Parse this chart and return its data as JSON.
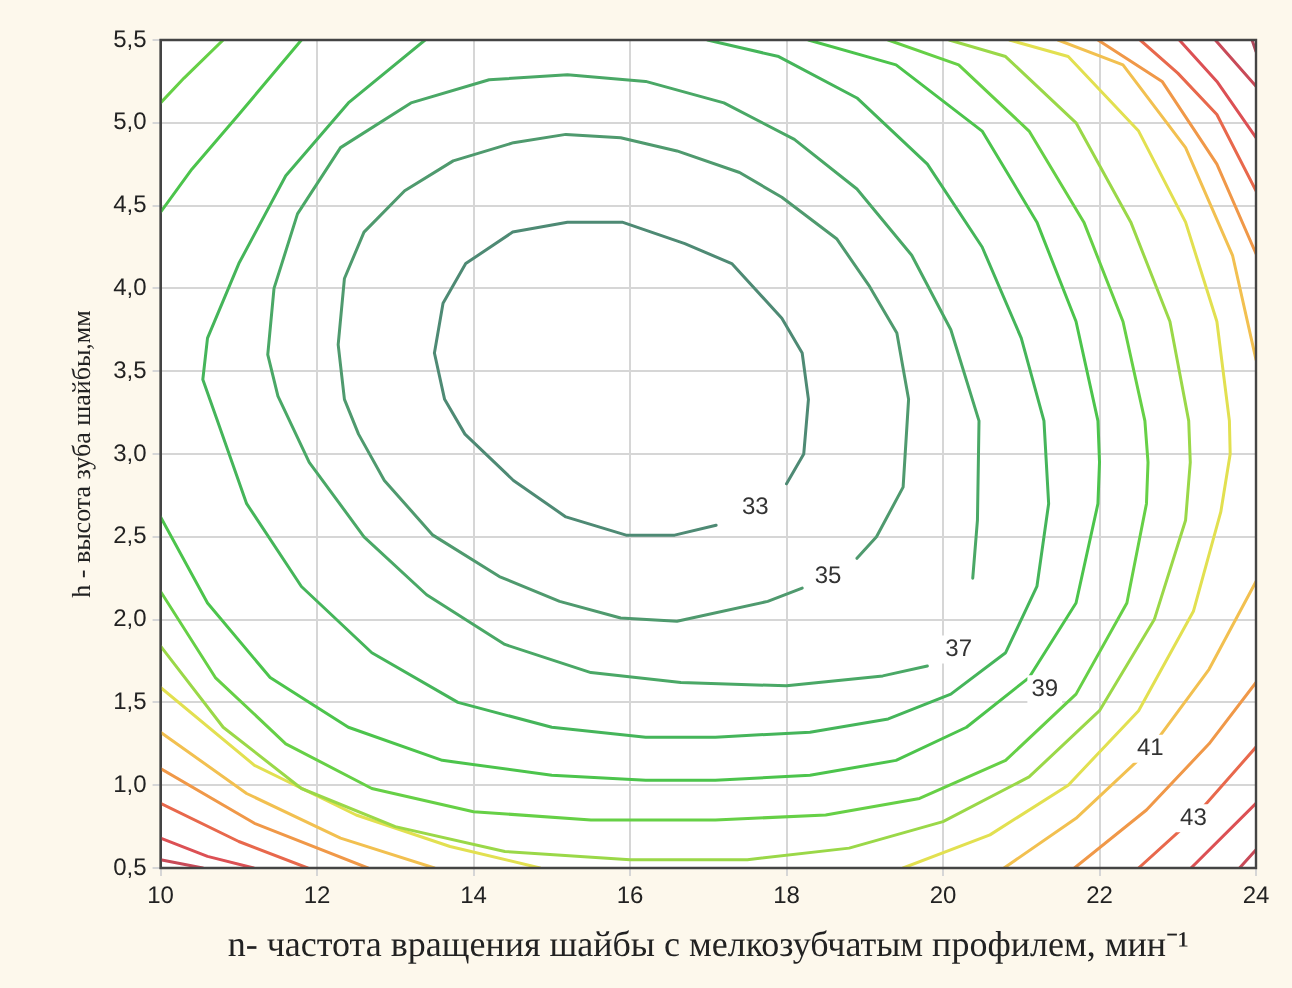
{
  "chart_data": {
    "type": "line",
    "xlabel": "n- частота вращения шайбы с мелкозубчатым профилем, мин⁻¹",
    "ylabel": "h - высота зуба шайбы,мм",
    "xlim": [
      10,
      24
    ],
    "ylim": [
      0.5,
      5.5
    ],
    "xticks": [
      10,
      12,
      14,
      16,
      18,
      20,
      22,
      24
    ],
    "yticks": [
      {
        "value": 0.5,
        "label": "0,5"
      },
      {
        "value": 1,
        "label": "1,0"
      },
      {
        "value": 1.5,
        "label": "1,5"
      },
      {
        "value": 2,
        "label": "2,0"
      },
      {
        "value": 2.5,
        "label": "2,5"
      },
      {
        "value": 3,
        "label": "3,0"
      },
      {
        "value": 3.5,
        "label": "3,5"
      },
      {
        "value": 4,
        "label": "4,0"
      },
      {
        "value": 4.5,
        "label": "4,5"
      },
      {
        "value": 5,
        "label": "5,0"
      },
      {
        "value": 5.5,
        "label": "5,5"
      }
    ],
    "grid": true,
    "marker": "none",
    "line_style": "solid",
    "series": [
      {
        "color": "#4e8a74",
        "x": [
          13.5,
          13.61,
          13.9,
          14.5,
          15.2,
          15.9,
          16.7,
          17.3,
          17.94,
          18.2,
          18.28,
          null,
          13.5,
          13.63,
          13.89,
          14.51,
          15.18,
          15.95,
          16.57,
          17.1,
          17.6,
          18.0,
          18.22,
          18.28
        ],
        "values": [
          3.61,
          3.91,
          4.15,
          4.34,
          4.4,
          4.4,
          4.27,
          4.15,
          3.82,
          3.61,
          3.33,
          null,
          3.61,
          3.33,
          3.12,
          2.84,
          2.62,
          2.51,
          2.51,
          2.57,
          null,
          2.82,
          3.0,
          3.33
        ]
      },
      {
        "color": "#4f9a6e",
        "x": [
          12.27,
          12.35,
          12.6,
          13.12,
          13.74,
          14.51,
          15.18,
          15.88,
          16.6,
          17.4,
          17.94,
          18.64,
          19.05,
          19.41,
          19.56,
          null,
          12.27,
          12.35,
          12.53,
          12.86,
          13.48,
          14.33,
          15.1,
          15.88,
          16.6,
          17.76,
          18.2,
          18.6,
          18.9,
          19.15,
          19.49,
          19.56
        ],
        "values": [
          3.66,
          4.06,
          4.34,
          4.59,
          4.77,
          4.88,
          4.93,
          4.91,
          4.83,
          4.7,
          4.55,
          4.3,
          4.02,
          3.73,
          3.33,
          null,
          3.66,
          3.33,
          3.12,
          2.84,
          2.51,
          2.26,
          2.11,
          2.01,
          1.99,
          2.11,
          2.19,
          null,
          2.37,
          2.5,
          2.8,
          3.33
        ]
      },
      {
        "color": "#4aa866",
        "x": [
          11.37,
          11.45,
          11.75,
          12.3,
          13.2,
          14.2,
          15.2,
          16.2,
          17.2,
          18.1,
          18.9,
          19.6,
          20.1,
          20.46,
          null,
          11.37,
          11.5,
          11.9,
          12.6,
          13.4,
          14.4,
          15.5,
          16.65,
          18.0,
          19.23,
          19.8,
          20.2,
          20.38,
          20.44,
          20.46
        ],
        "values": [
          3.6,
          4.0,
          4.45,
          4.85,
          5.12,
          5.26,
          5.29,
          5.25,
          5.12,
          4.9,
          4.6,
          4.2,
          3.75,
          3.2,
          null,
          3.6,
          3.35,
          2.95,
          2.5,
          2.15,
          1.85,
          1.68,
          1.62,
          1.6,
          1.66,
          1.72,
          null,
          2.25,
          2.6,
          3.2
        ]
      },
      {
        "color": "#45b55a",
        "x": [
          10.54,
          10.6,
          11.0,
          11.6,
          12.4,
          13.38,
          null,
          10.54,
          10.72,
          11.1,
          11.8,
          12.7,
          13.8,
          15.0,
          16.2,
          17.09,
          18.3,
          19.3,
          20.1,
          20.8,
          21.2,
          21.35,
          null,
          16.99,
          17.9,
          18.9,
          19.8,
          20.5,
          21.0,
          21.29,
          21.35
        ],
        "values": [
          3.45,
          3.7,
          4.15,
          4.68,
          5.12,
          5.5,
          null,
          3.45,
          3.21,
          2.7,
          2.2,
          1.8,
          1.5,
          1.35,
          1.29,
          1.29,
          1.32,
          1.4,
          1.55,
          1.8,
          2.2,
          2.7,
          null,
          5.5,
          5.4,
          5.15,
          4.75,
          4.25,
          3.7,
          3.2,
          2.7
        ]
      },
      {
        "color": "#4cc44c",
        "x": [
          10.0,
          10.4,
          11.0,
          11.8,
          null,
          10.0,
          10.6,
          11.4,
          12.4,
          13.6,
          15.0,
          16.2,
          17.09,
          18.3,
          19.4,
          20.3,
          21.1,
          21.7,
          21.98,
          22.0,
          null,
          18.28,
          19.4,
          20.5,
          21.2,
          21.7,
          21.98,
          22.0
        ],
        "values": [
          4.46,
          4.72,
          5.05,
          5.5,
          null,
          2.62,
          2.1,
          1.65,
          1.35,
          1.15,
          1.06,
          1.03,
          1.03,
          1.06,
          1.15,
          1.35,
          1.65,
          2.1,
          2.7,
          2.95,
          null,
          5.5,
          5.35,
          4.95,
          4.4,
          3.8,
          3.2,
          2.95
        ]
      },
      {
        "color": "#66d046",
        "x": [
          10.0,
          10.3,
          10.8,
          null,
          10.0,
          10.7,
          11.6,
          12.7,
          14.0,
          15.5,
          17.09,
          18.5,
          19.7,
          20.8,
          21.7,
          22.35,
          22.6,
          22.62,
          null,
          19.3,
          20.2,
          21.1,
          21.8,
          22.3,
          22.58,
          22.62
        ],
        "values": [
          5.12,
          5.27,
          5.5,
          null,
          2.17,
          1.65,
          1.25,
          0.98,
          0.84,
          0.79,
          0.79,
          0.82,
          0.92,
          1.15,
          1.55,
          2.1,
          2.7,
          2.95,
          null,
          5.5,
          5.35,
          4.95,
          4.4,
          3.8,
          3.2,
          2.95
        ]
      },
      {
        "color": "#9ad848",
        "x": [
          10.0,
          10.8,
          11.8,
          13.0,
          14.4,
          16.0,
          17.5,
          18.8,
          20.0,
          21.1,
          22.0,
          22.7,
          23.1,
          23.16,
          null,
          20.08,
          20.8,
          21.7,
          22.4,
          22.9,
          23.14,
          23.16
        ],
        "values": [
          1.84,
          1.35,
          0.98,
          0.75,
          0.6,
          0.55,
          0.55,
          0.62,
          0.78,
          1.05,
          1.45,
          2.0,
          2.6,
          2.95,
          null,
          5.5,
          5.4,
          5.0,
          4.4,
          3.8,
          3.2,
          2.95
        ]
      },
      {
        "color": "#e2e050",
        "x": [
          10.0,
          11.2,
          12.5,
          13.7,
          14.85,
          null,
          19.49,
          20.6,
          21.6,
          22.5,
          23.2,
          23.55,
          23.67,
          null,
          20.85,
          21.6,
          22.5,
          23.1,
          23.5,
          23.66,
          23.67
        ],
        "values": [
          1.59,
          1.12,
          0.82,
          0.63,
          0.5,
          null,
          0.5,
          0.7,
          1.0,
          1.45,
          2.05,
          2.65,
          3.0,
          null,
          5.5,
          5.4,
          4.95,
          4.4,
          3.8,
          3.2,
          3.0
        ]
      },
      {
        "color": "#f2c050",
        "x": [
          10.0,
          11.1,
          12.3,
          13.5,
          null,
          20.78,
          21.7,
          22.65,
          23.4,
          24.0,
          null,
          21.47,
          22.3,
          23.1,
          23.7,
          24.0
        ],
        "values": [
          1.32,
          0.95,
          0.68,
          0.5,
          null,
          0.5,
          0.8,
          1.22,
          1.7,
          2.23,
          null,
          5.5,
          5.35,
          4.85,
          4.2,
          3.57
        ]
      },
      {
        "color": "#f09848",
        "x": [
          10.0,
          11.2,
          12.65,
          null,
          21.68,
          22.6,
          23.4,
          24.0,
          null,
          21.98,
          22.8,
          23.5,
          24.0
        ],
        "values": [
          1.1,
          0.77,
          0.5,
          null,
          0.5,
          0.85,
          1.25,
          1.62,
          null,
          5.5,
          5.25,
          4.75,
          4.21
        ]
      },
      {
        "color": "#e8684c",
        "x": [
          10.0,
          11.0,
          11.88,
          null,
          22.5,
          23.2,
          24.0,
          null,
          22.52,
          23.0,
          23.5,
          24.0
        ],
        "values": [
          0.89,
          0.66,
          0.5,
          null,
          0.5,
          0.8,
          1.23,
          null,
          5.5,
          5.3,
          5.05,
          4.59
        ]
      },
      {
        "color": "#dc5054",
        "x": [
          10.0,
          10.6,
          11.19,
          null,
          23.17,
          24.0,
          null,
          23.02,
          23.5,
          24.0
        ],
        "values": [
          0.68,
          0.57,
          0.5,
          null,
          0.5,
          0.89,
          null,
          5.5,
          5.25,
          4.91
        ]
      },
      {
        "color": "#c84a58",
        "x": [
          10.0,
          10.54,
          null,
          23.79,
          24.0,
          null,
          23.48,
          24.0
        ],
        "values": [
          0.55,
          0.5,
          null,
          0.5,
          0.61,
          null,
          5.5,
          5.22
        ]
      },
      {
        "color": "#b0485c",
        "x": [
          23.95,
          24.0
        ],
        "values": [
          5.5,
          5.43
        ]
      }
    ],
    "annotations": [
      {
        "text": "33",
        "x": 17.6,
        "y": 2.68
      },
      {
        "text": "35",
        "x": 18.53,
        "y": 2.26
      },
      {
        "text": "37",
        "x": 20.2,
        "y": 1.82
      },
      {
        "text": "39",
        "x": 21.3,
        "y": 1.58
      },
      {
        "text": "41",
        "x": 22.65,
        "y": 1.22
      },
      {
        "text": "43",
        "x": 23.2,
        "y": 0.8
      }
    ]
  }
}
